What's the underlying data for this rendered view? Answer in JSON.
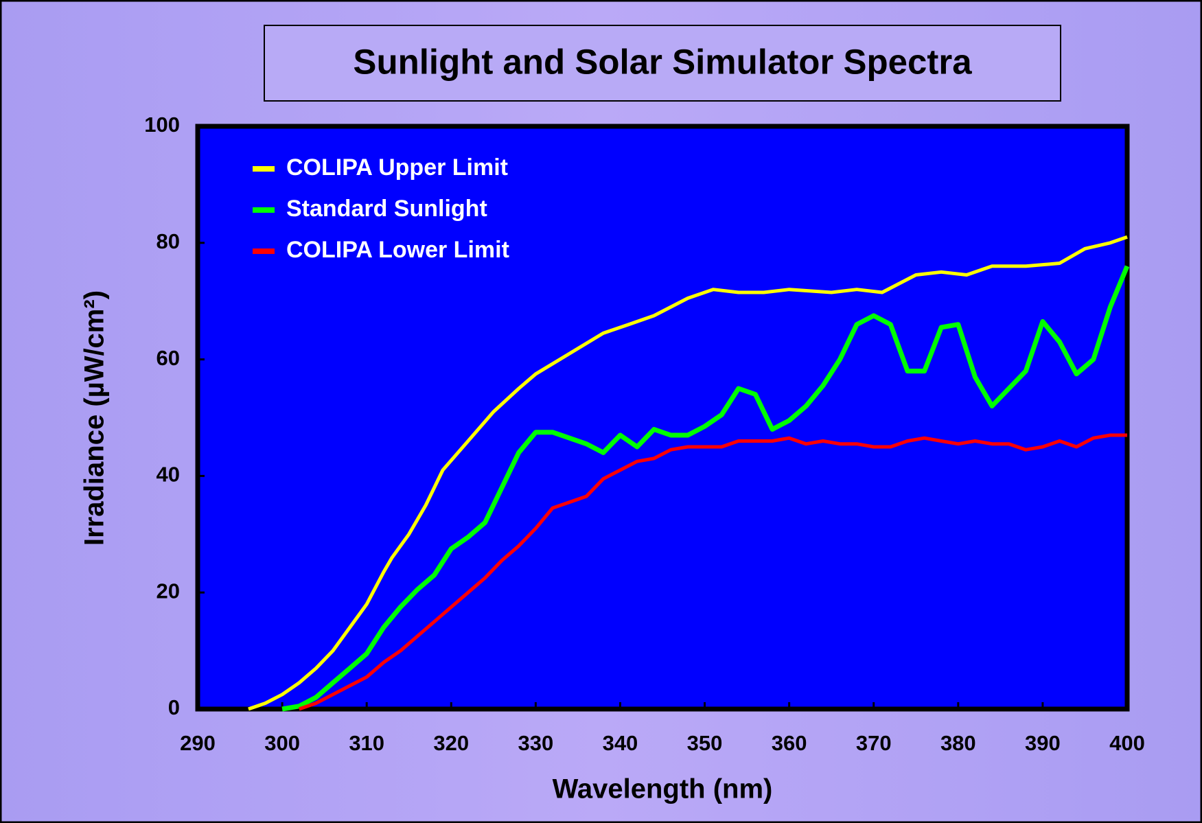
{
  "chart_data": {
    "type": "line",
    "title": "Sunlight and Solar Simulator Spectra",
    "x_label": "Wavelength (nm)",
    "y_label": "Irradiance (µW/cm²)",
    "xlim": [
      290,
      400
    ],
    "xticks": [
      290,
      300,
      310,
      320,
      330,
      340,
      350,
      360,
      370,
      380,
      390,
      400
    ],
    "ylim": [
      0,
      100
    ],
    "yticks": [
      0,
      20,
      40,
      60,
      80,
      100
    ],
    "legend": "upper left",
    "series": [
      {
        "name": "COLIPA Upper Limit",
        "color": "#ffff00",
        "x": [
          296,
          298,
          300,
          302,
          304,
          306,
          308,
          310,
          312,
          313,
          315,
          317,
          319,
          322,
          325,
          328,
          330,
          334,
          338,
          341,
          344,
          348,
          351,
          354,
          357,
          360,
          365,
          368,
          371,
          375,
          378,
          381,
          384,
          388,
          392,
          395,
          398,
          400
        ],
        "values": [
          0,
          1,
          2.5,
          4.5,
          7,
          10,
          14,
          18,
          23.5,
          26,
          30,
          35,
          41,
          46,
          51,
          55,
          57.5,
          61,
          64.5,
          66,
          67.5,
          70.5,
          72,
          71.5,
          71.5,
          72,
          71.5,
          72,
          71.5,
          74.5,
          75,
          74.5,
          76,
          76,
          76.5,
          79,
          80,
          81
        ]
      },
      {
        "name": "Standard Sunlight",
        "color": "#00ff00",
        "x": [
          300,
          302,
          304,
          306,
          308,
          310,
          312,
          314,
          316,
          318,
          320,
          322,
          324,
          326,
          328,
          330,
          332,
          334,
          336,
          338,
          340,
          342,
          344,
          346,
          348,
          350,
          352,
          354,
          356,
          358,
          360,
          362,
          364,
          366,
          368,
          370,
          372,
          374,
          376,
          378,
          380,
          382,
          384,
          386,
          388,
          390,
          392,
          394,
          396,
          398,
          400
        ],
        "values": [
          0,
          0.5,
          2,
          4.5,
          7,
          9.5,
          14,
          17.5,
          20.5,
          23,
          27.5,
          29.5,
          32,
          38,
          44,
          47.5,
          47.5,
          46.5,
          45.5,
          44,
          47,
          45,
          48,
          47,
          47,
          48.5,
          50.5,
          55,
          54,
          48,
          49.5,
          52,
          55.5,
          60,
          66,
          67.5,
          66,
          58,
          58,
          65.5,
          66,
          57,
          52,
          55,
          58,
          66.5,
          63,
          57.5,
          60,
          69,
          76
        ]
      },
      {
        "name": "COLIPA Lower Limit",
        "color": "#ff0000",
        "x": [
          302,
          304,
          306,
          308,
          310,
          312,
          314,
          316,
          318,
          320,
          322,
          324,
          326,
          328,
          330,
          332,
          334,
          336,
          338,
          340,
          342,
          344,
          346,
          348,
          350,
          352,
          354,
          356,
          358,
          360,
          362,
          364,
          366,
          368,
          370,
          372,
          374,
          376,
          378,
          380,
          382,
          384,
          386,
          388,
          390,
          392,
          394,
          396,
          398,
          400
        ],
        "values": [
          0,
          1,
          2.5,
          4,
          5.5,
          8,
          10,
          12.5,
          15,
          17.5,
          20,
          22.5,
          25.5,
          28,
          31,
          34.5,
          35.5,
          36.5,
          39.5,
          41,
          42.5,
          43,
          44.5,
          45,
          45,
          45,
          46,
          46,
          46,
          46.5,
          45.5,
          46,
          45.5,
          45.5,
          45,
          45,
          46,
          46.5,
          46,
          45.5,
          46,
          45.5,
          45.5,
          44.5,
          45,
          46,
          45,
          46.5,
          47,
          47
        ]
      }
    ]
  }
}
